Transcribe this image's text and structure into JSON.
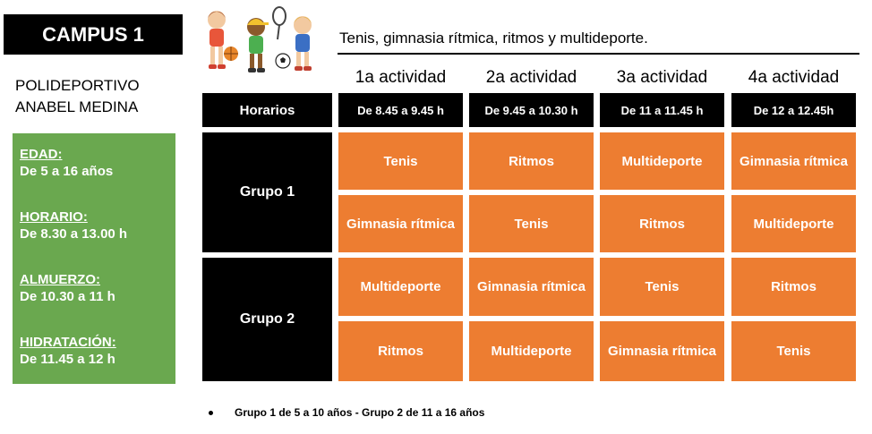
{
  "campus_title": "CAMPUS 1",
  "venue": [
    "POLIDEPORTIVO",
    "ANABEL MEDINA"
  ],
  "info": [
    {
      "label": "EDAD:",
      "value": "De 5 a 16 años"
    },
    {
      "label": "HORARIO:",
      "value": "De 8.30 a 13.00 h"
    },
    {
      "label": "ALMUERZO:",
      "value": "De 10.30 a 11 h"
    },
    {
      "label": "HIDRATACIÓN:",
      "value": "De 11.45 a 12 h"
    }
  ],
  "subtitle": "Tenis, gimnasia rítmica, ritmos y multideporte.",
  "activities": [
    "1a actividad",
    "2a actividad",
    "3a actividad",
    "4a actividad"
  ],
  "schedule": {
    "row_header": "Horarios",
    "times": [
      "De 8.45  a 9.45 h",
      "De 9.45  a 10.30 h",
      "De 11 a 11.45 h",
      "De 12 a 12.45h"
    ]
  },
  "groups": [
    {
      "name": "Grupo 1",
      "rows": [
        [
          "Tenis",
          "Ritmos",
          "Multideporte",
          "Gimnasia rítmica"
        ],
        [
          "Gimnasia rítmica",
          "Tenis",
          "Ritmos",
          "Multideporte"
        ]
      ]
    },
    {
      "name": "Grupo 2",
      "rows": [
        [
          "Multideporte",
          "Gimnasia rítmica",
          "Tenis",
          "Ritmos"
        ],
        [
          "Ritmos",
          "Multideporte",
          "Gimnasia rítmica",
          "Tenis"
        ]
      ]
    }
  ],
  "footnote": "Grupo 1 de 5 a 10 años - Grupo 2 de 11 a 16 años",
  "colors": {
    "orange": "#ed7d31",
    "green": "#6aa84f",
    "black": "#000000"
  }
}
